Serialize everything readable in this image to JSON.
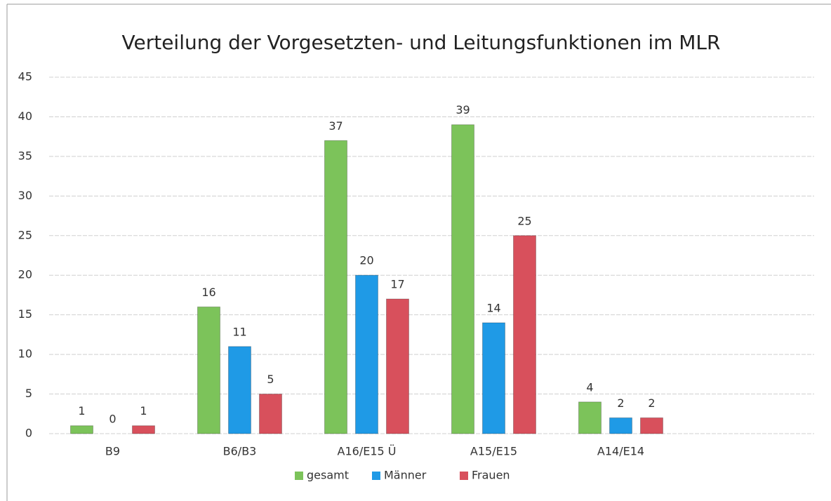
{
  "chart_data": {
    "type": "bar",
    "title": "Verteilung der Vorgesetzten- und Leitungsfunktionen im MLR",
    "categories": [
      "B9",
      "B6/B3",
      "A16/E15 Ü",
      "A15/E15",
      "A14/E14"
    ],
    "series": [
      {
        "name": "gesamt",
        "color": "#7cc35a",
        "values": [
          1,
          16,
          37,
          39,
          4
        ]
      },
      {
        "name": "Männer",
        "color": "#1f9ae6",
        "values": [
          0,
          11,
          20,
          14,
          2
        ]
      },
      {
        "name": "Frauen",
        "color": "#d8505c",
        "values": [
          1,
          5,
          17,
          25,
          2
        ]
      }
    ],
    "ylim": [
      0,
      45
    ],
    "yticks": [
      0,
      5,
      10,
      15,
      20,
      25,
      30,
      35,
      40,
      45
    ],
    "grid": true,
    "legend": "bottom"
  }
}
